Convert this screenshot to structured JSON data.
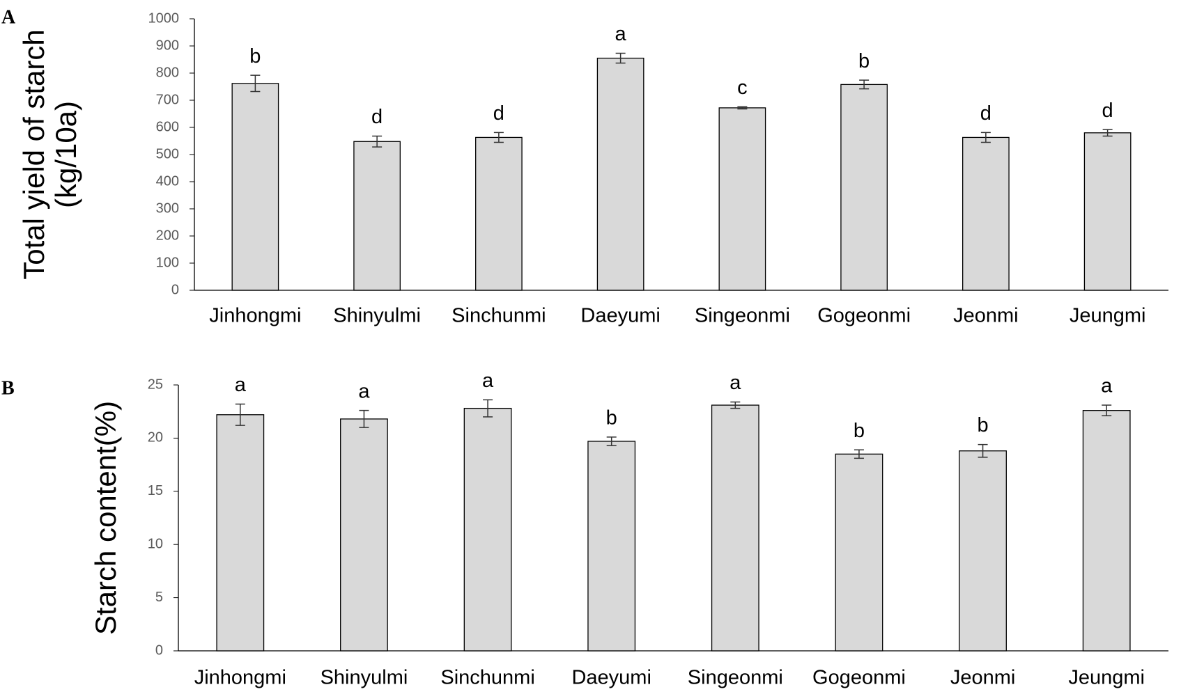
{
  "chart_data": [
    {
      "type": "bar",
      "panel": "A",
      "ylabel": [
        "Total yield of starch",
        "(kg/10a)"
      ],
      "categories": [
        "Jinhongmi",
        "Shinyulmi",
        "Sinchunmi",
        "Daeyumi",
        "Singeonmi",
        "Gogeonmi",
        "Jeonmi",
        "Jeungmi"
      ],
      "values": [
        762,
        548,
        563,
        855,
        672,
        758,
        563,
        580
      ],
      "errors": [
        30,
        20,
        18,
        18,
        4,
        16,
        18,
        12
      ],
      "labels": [
        "b",
        "d",
        "d",
        "a",
        "c",
        "b",
        "d",
        "d"
      ],
      "color": "#d9d9d9",
      "ylim": [
        0,
        1000
      ],
      "yticks": [
        0,
        100,
        200,
        300,
        400,
        500,
        600,
        700,
        800,
        900,
        1000
      ],
      "grid": false
    },
    {
      "type": "bar",
      "panel": "B",
      "ylabel": [
        "Starch content(%)"
      ],
      "categories": [
        "Jinhongmi",
        "Shinyulmi",
        "Sinchunmi",
        "Daeyumi",
        "Singeonmi",
        "Gogeonmi",
        "Jeonmi",
        "Jeungmi"
      ],
      "values": [
        22.2,
        21.8,
        22.8,
        19.7,
        23.1,
        18.5,
        18.8,
        22.6
      ],
      "errors": [
        1.0,
        0.8,
        0.8,
        0.4,
        0.3,
        0.4,
        0.6,
        0.5
      ],
      "labels": [
        "a",
        "a",
        "a",
        "b",
        "a",
        "b",
        "b",
        "a"
      ],
      "color": "#d9d9d9",
      "ylim": [
        0,
        25
      ],
      "yticks": [
        0,
        5,
        10,
        15,
        20,
        25
      ],
      "grid": false
    }
  ]
}
